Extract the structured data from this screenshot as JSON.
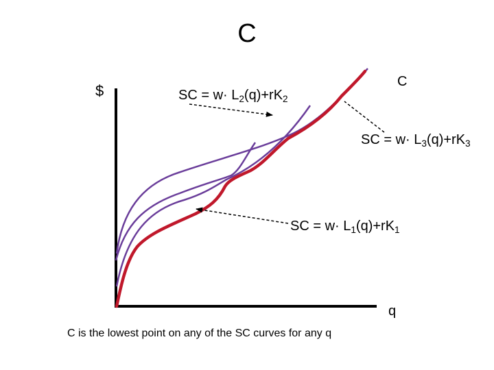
{
  "slide": {
    "title": "C",
    "caption": "C is the lowest point on any of the SC curves for any q"
  },
  "axes": {
    "y_label": "$",
    "x_label": "q"
  },
  "curves": {
    "envelope": {
      "label": "C",
      "color": "#c0182b"
    },
    "short_run": {
      "color": "#6a3d9a",
      "sc2": {
        "prefix": "SC = w· L",
        "sub1": "2",
        "mid": "(q)+rK",
        "sub2": "2"
      },
      "sc3": {
        "prefix": "SC = w· L",
        "sub1": "3",
        "mid": "(q)+rK",
        "sub2": "3"
      },
      "sc1": {
        "prefix": "SC = w· L",
        "sub1": "1",
        "mid": "(q)+rK",
        "sub2": "1"
      }
    }
  }
}
